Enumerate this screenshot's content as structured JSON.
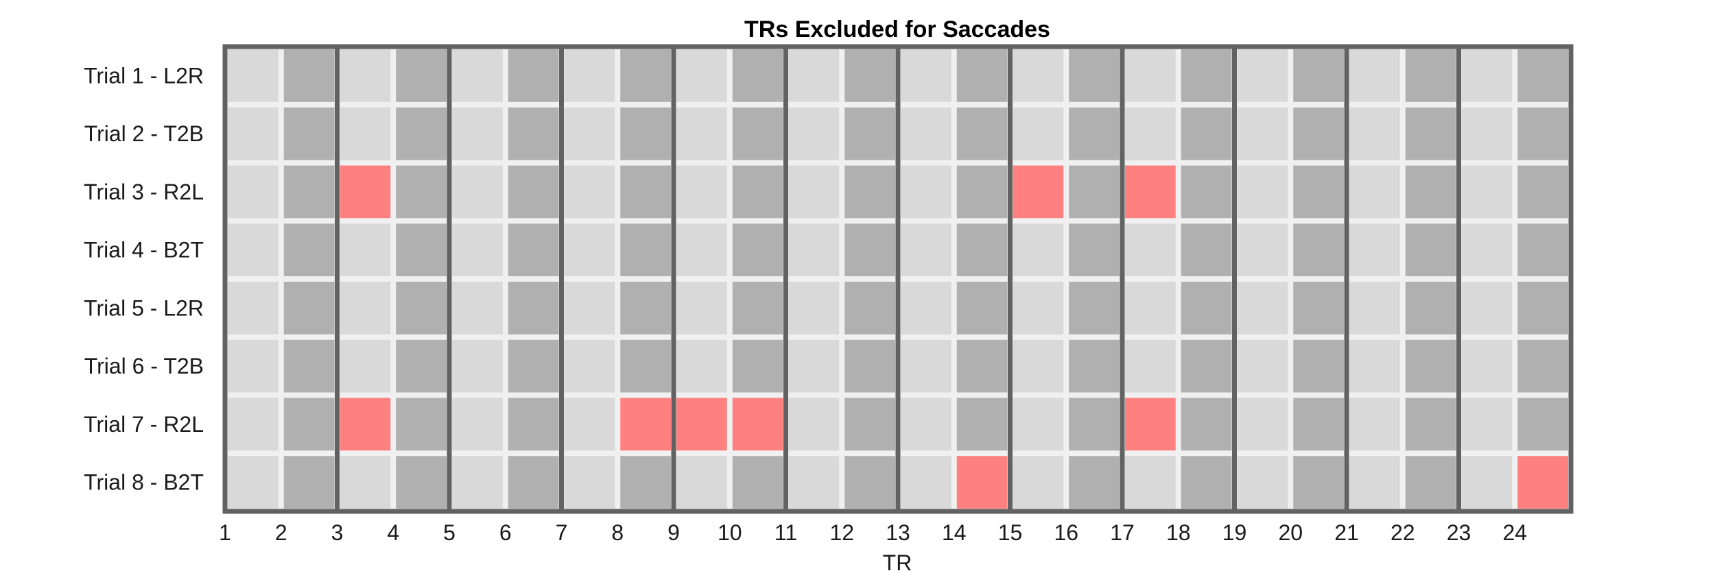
{
  "chart_data": {
    "type": "heatmap",
    "title": "TRs Excluded for Saccades",
    "xlabel": "TR",
    "ylabel": "",
    "x_tick_labels": [
      "1",
      "2",
      "3",
      "4",
      "5",
      "6",
      "7",
      "8",
      "9",
      "10",
      "11",
      "12",
      "13",
      "14",
      "15",
      "16",
      "17",
      "18",
      "19",
      "20",
      "21",
      "22",
      "23",
      "24"
    ],
    "rows": [
      "Trial 1 - L2R",
      "Trial 2 - T2B",
      "Trial 3 - R2L",
      "Trial 4 - B2T",
      "Trial 5 - L2R",
      "Trial 6 - T2B",
      "Trial 7 - R2L",
      "Trial 8 - B2T"
    ],
    "num_trs": 24,
    "thick_line_every": 2,
    "grid": true,
    "legend": "none",
    "excluded": [
      {
        "row": 3,
        "tr": 3
      },
      {
        "row": 3,
        "tr": 15
      },
      {
        "row": 3,
        "tr": 17
      },
      {
        "row": 7,
        "tr": 3
      },
      {
        "row": 7,
        "tr": 8
      },
      {
        "row": 7,
        "tr": 9
      },
      {
        "row": 7,
        "tr": 10
      },
      {
        "row": 7,
        "tr": 17
      },
      {
        "row": 8,
        "tr": 14
      },
      {
        "row": 8,
        "tr": 24
      }
    ],
    "colors": {
      "light_cell": "#d9d9d9",
      "dark_cell": "#b0b0b0",
      "excluded_cell": "#ff8080",
      "grid_gap": "#f0f0f0",
      "frame": "#626262"
    }
  }
}
